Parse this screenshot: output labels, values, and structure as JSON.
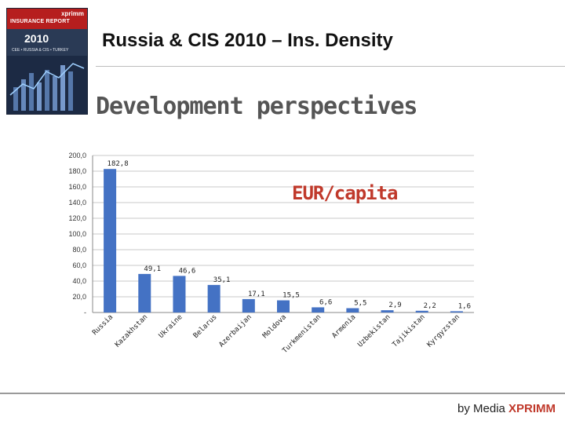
{
  "header": {
    "title": "Russia & CIS 2010 – Ins. Density",
    "subtitle": "Development perspectives"
  },
  "cover": {
    "brand": "xprimm",
    "name": "INSURANCE REPORT",
    "year": "2010",
    "sub": "CEE • RUSSIA & CIS • TURKEY"
  },
  "footer": {
    "prefix": "by Media ",
    "brand": "XPRIMM"
  },
  "colors": {
    "bar": "#4472c4",
    "accent": "#c0392b",
    "cover_red": "#b61e1e"
  },
  "chart_data": {
    "type": "bar",
    "unit_label": "EUR/capita",
    "categories": [
      "Russia",
      "Kazakhstan",
      "Ukraine",
      "Belarus",
      "Azerbaijan",
      "Moldova",
      "Turkmenistan",
      "Armenia",
      "Uzbekistan",
      "Tajikistan",
      "Kyrgyzstan"
    ],
    "values": [
      182.8,
      49.1,
      46.6,
      35.1,
      17.1,
      15.5,
      6.6,
      5.5,
      2.9,
      2.2,
      1.6
    ],
    "value_labels": [
      "182,8",
      "49,1",
      "46,6",
      "35,1",
      "17,1",
      "15,5",
      "6,6",
      "5,5",
      "2,9",
      "2,2",
      "1,6"
    ],
    "yticks": [
      "-",
      "20,0",
      "40,0",
      "60,0",
      "80,0",
      "100,0",
      "120,0",
      "140,0",
      "160,0",
      "180,0",
      "200,0"
    ],
    "ylim": [
      0,
      200
    ],
    "grid": true,
    "legend": "none"
  }
}
